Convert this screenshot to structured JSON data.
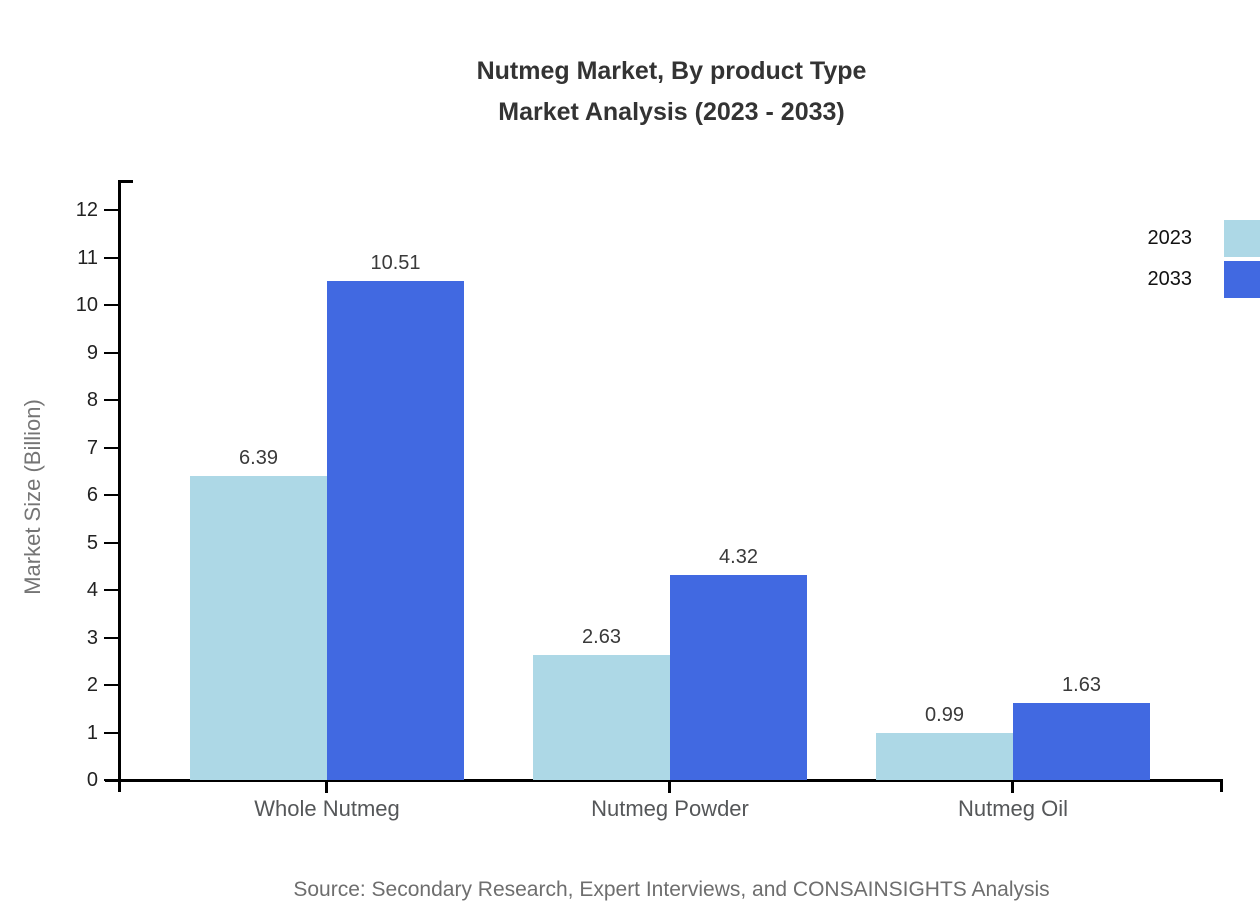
{
  "title": {
    "line1": "Nutmeg Market, By product Type",
    "line2": "Market Analysis (2023 - 2033)"
  },
  "source_text": "Source: Secondary Research, Expert Interviews, and CONSAINSIGHTS Analysis",
  "chart_data": {
    "type": "bar",
    "title": "Nutmeg Market, By product Type - Market Analysis (2023 - 2033)",
    "categories": [
      "Whole Nutmeg",
      "Nutmeg Powder",
      "Nutmeg Oil"
    ],
    "series": [
      {
        "name": "2023",
        "color": "#ADD8E6",
        "values": [
          6.39,
          2.63,
          0.99
        ]
      },
      {
        "name": "2033",
        "color": "#4169E1",
        "values": [
          10.51,
          4.32,
          1.63
        ]
      }
    ],
    "xlabel": "",
    "ylabel": "Market Size (Billion)",
    "ylim": [
      0,
      12
    ],
    "y_ticks": [
      0,
      1,
      2,
      3,
      4,
      5,
      6,
      7,
      8,
      9,
      10,
      11,
      12
    ],
    "grid": false,
    "legend_position": "top-right",
    "value_labels": true
  }
}
